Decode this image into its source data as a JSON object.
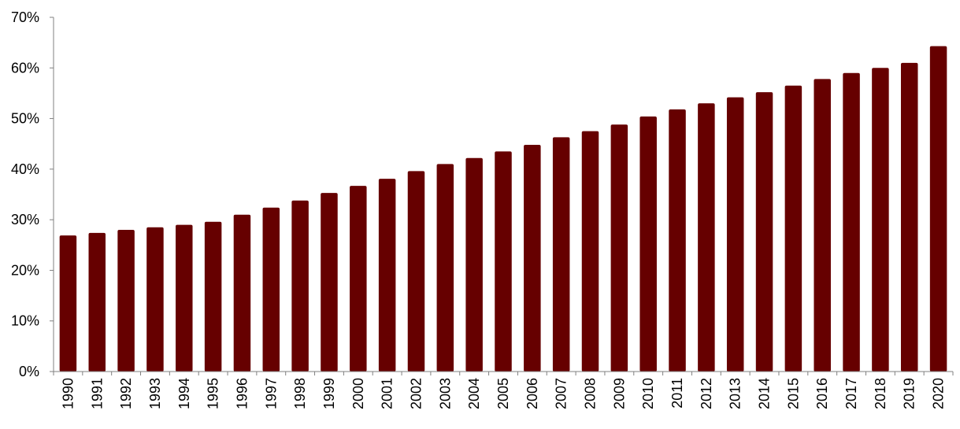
{
  "chart_data": {
    "type": "bar",
    "title": "",
    "xlabel": "",
    "ylabel": "",
    "categories": [
      "1990",
      "1991",
      "1992",
      "1993",
      "1994",
      "1995",
      "1996",
      "1997",
      "1998",
      "1999",
      "2000",
      "2001",
      "2002",
      "2003",
      "2004",
      "2005",
      "2006",
      "2007",
      "2008",
      "2009",
      "2010",
      "2011",
      "2012",
      "2013",
      "2014",
      "2015",
      "2016",
      "2017",
      "2018",
      "2019",
      "2020"
    ],
    "values": [
      26.9,
      27.4,
      28.0,
      28.5,
      29.0,
      29.6,
      31.0,
      32.4,
      33.8,
      35.3,
      36.7,
      38.1,
      39.6,
      41.0,
      42.2,
      43.5,
      44.8,
      46.3,
      47.5,
      48.8,
      50.4,
      51.8,
      53.0,
      54.2,
      55.2,
      56.5,
      57.8,
      59.0,
      60.0,
      61.0,
      64.3
    ],
    "ylim": [
      0,
      70
    ],
    "y_ticks": [
      "0%",
      "10%",
      "20%",
      "30%",
      "40%",
      "50%",
      "60%",
      "70%"
    ],
    "bar_color": "#660000",
    "grid": false,
    "legend": "none"
  }
}
